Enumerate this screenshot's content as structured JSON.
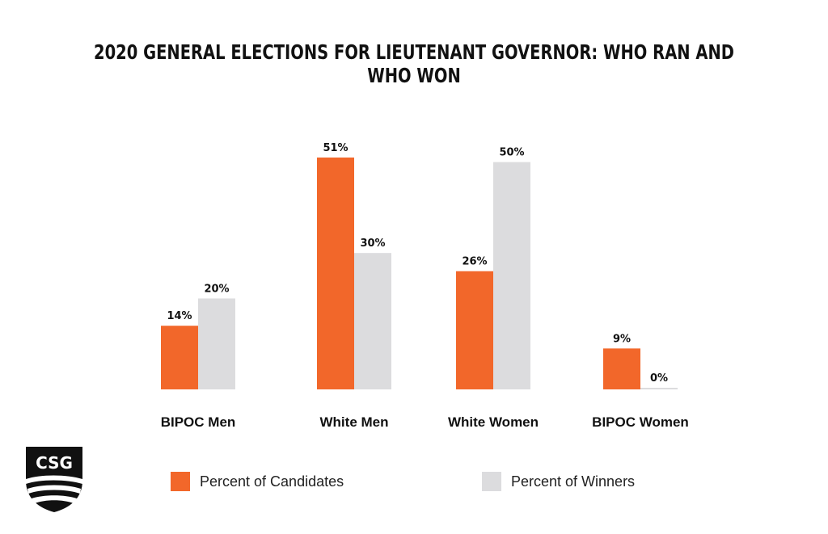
{
  "chart_data": {
    "type": "bar",
    "title": "2020 GENERAL ELECTIONS FOR LIEUTENANT GOVERNOR: WHO RAN AND WHO WON",
    "categories": [
      "BIPOC Men",
      "White Men",
      "White Women",
      "BIPOC Women"
    ],
    "series": [
      {
        "name": "Percent of Candidates",
        "values": [
          14,
          51,
          26,
          9
        ],
        "labels": [
          "14%",
          "51%",
          "26%",
          "9%"
        ],
        "color": "#f2672a"
      },
      {
        "name": "Percent of Winners",
        "values": [
          20,
          30,
          50,
          0
        ],
        "labels": [
          "20%",
          "30%",
          "50%",
          "0%"
        ],
        "color": "#dcdcde"
      }
    ],
    "ylim": [
      0,
      51
    ],
    "grid": false,
    "legend_position": "bottom",
    "xlabel": "",
    "ylabel": ""
  },
  "logo": {
    "text": "CSG",
    "color": "#111111"
  }
}
